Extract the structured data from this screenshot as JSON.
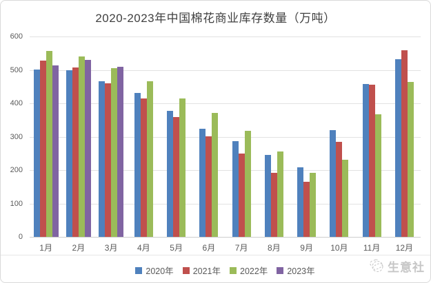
{
  "title": "2020-2023年中国棉花商业库存数量（万吨）",
  "watermark": {
    "brand": "生意社",
    "icon": "globe-sketch-icon"
  },
  "chart_data": {
    "type": "bar",
    "title": "2020-2023年中国棉花商业库存数量（万吨）",
    "categories": [
      "1月",
      "2月",
      "3月",
      "4月",
      "5月",
      "6月",
      "7月",
      "8月",
      "9月",
      "10月",
      "11月",
      "12月"
    ],
    "series": [
      {
        "name": "2020年",
        "color": "#4F81BD",
        "values": [
          501,
          498,
          466,
          430,
          377,
          323,
          286,
          245,
          208,
          320,
          457,
          532
        ]
      },
      {
        "name": "2021年",
        "color": "#C0504D",
        "values": [
          527,
          507,
          460,
          414,
          358,
          301,
          249,
          192,
          166,
          284,
          455,
          558
        ]
      },
      {
        "name": "2022年",
        "color": "#9BBB59",
        "values": [
          556,
          541,
          506,
          467,
          415,
          371,
          318,
          256,
          192,
          231,
          368,
          463
        ]
      },
      {
        "name": "2023年",
        "color": "#8064A2",
        "values": [
          513,
          530,
          510,
          null,
          null,
          null,
          null,
          null,
          null,
          null,
          null,
          null
        ]
      }
    ],
    "ylim": [
      0,
      600
    ],
    "ytick_step": 100,
    "xlabel": "",
    "ylabel": "",
    "grid": true,
    "legend_position": "bottom"
  }
}
